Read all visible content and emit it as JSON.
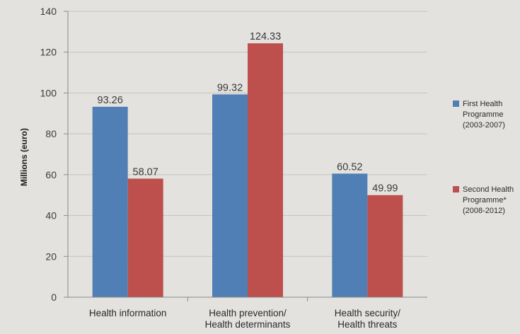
{
  "chart_data": {
    "type": "bar",
    "categories": [
      [
        "Health information"
      ],
      [
        "Health prevention/",
        "Health determinants"
      ],
      [
        "Health security/",
        "Health threats"
      ]
    ],
    "series": [
      {
        "name": "First Health Programme (2003-2007)",
        "legend_lines": [
          "First Health",
          "Programme",
          "(2003-2007)"
        ],
        "color": "#4f7fb4",
        "values": [
          93.26,
          99.32,
          60.52
        ],
        "labels": [
          "93.26",
          "99.32",
          "60.52"
        ]
      },
      {
        "name": "Second Health Programme* (2008-2012)",
        "legend_lines": [
          "Second Health",
          "Programme*",
          "(2008-2012)"
        ],
        "color": "#bd4f4c",
        "values": [
          58.07,
          124.33,
          49.99
        ],
        "labels": [
          "58.07",
          "124.33",
          "49.99"
        ]
      }
    ],
    "title": "",
    "xlabel": "",
    "ylabel": "Millions (euro)",
    "ylim": [
      0,
      140
    ],
    "yticks": [
      0,
      20,
      40,
      60,
      80,
      100,
      120,
      140
    ],
    "grid": true,
    "legend_position": "right"
  }
}
